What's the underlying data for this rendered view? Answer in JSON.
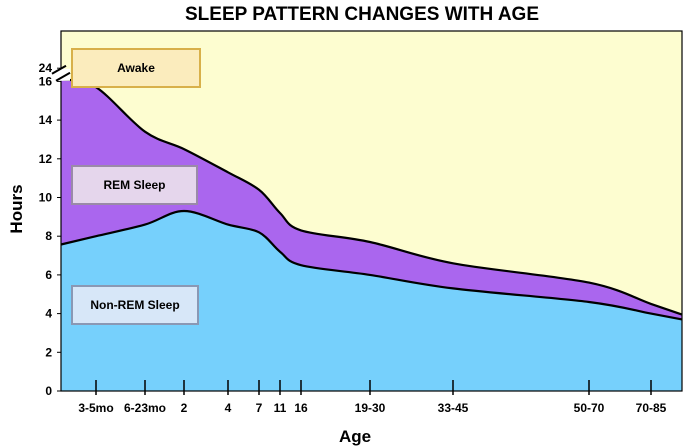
{
  "chart_data": {
    "type": "area",
    "title": "SLEEP PATTERN CHANGES WITH AGE",
    "xlabel": "Age",
    "ylabel": "Hours",
    "y_ticks": [
      "0",
      "2",
      "4",
      "6",
      "8",
      "10",
      "12",
      "14",
      "16",
      "24"
    ],
    "y_axis_break": "between 16 and 24",
    "x_ticks": [
      "3-5mo",
      "6-23mo",
      "2",
      "4",
      "7",
      "11",
      "16",
      "19-30",
      "33-45",
      "50-70",
      "70-85"
    ],
    "grid": false,
    "legend_placement": "inside-left",
    "series": [
      {
        "name": "Non-REM Sleep",
        "color": "#76d0fc",
        "values": [
          8.0,
          8.6,
          9.3,
          8.6,
          8.2,
          7.2,
          6.5,
          6.0,
          5.3,
          4.6,
          4.0
        ]
      },
      {
        "name": "REM Sleep",
        "color": "#aa66ee",
        "values": [
          7.7,
          4.8,
          3.2,
          2.7,
          2.2,
          2.0,
          1.8,
          1.7,
          1.3,
          1.0,
          0.5
        ]
      },
      {
        "name": "Awake",
        "color": "#fdfdd0",
        "fills_to": 24
      }
    ],
    "legend_box_colors": {
      "Awake": "#fbecbd",
      "REM Sleep": "#e5d6ec",
      "Non-REM Sleep": "#d7e7f8"
    }
  }
}
